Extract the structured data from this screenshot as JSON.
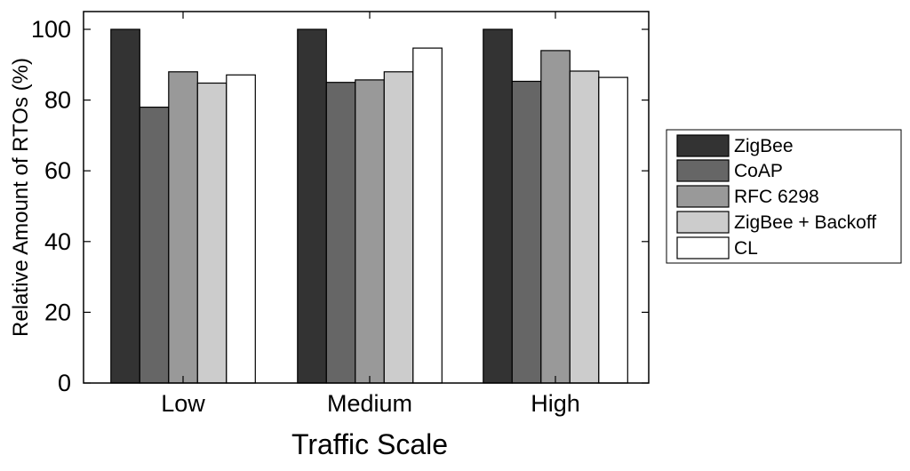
{
  "chart_data": {
    "type": "bar",
    "title": "",
    "xlabel": "Traffic Scale",
    "ylabel": "Relative Amount of RTOs (%)",
    "ylim": [
      0,
      100
    ],
    "yticks": [
      0,
      20,
      40,
      60,
      80,
      100
    ],
    "categories": [
      "Low",
      "Medium",
      "High"
    ],
    "legend_position": "right",
    "series": [
      {
        "name": "ZigBee",
        "color": "#333333",
        "values": [
          100,
          100,
          100
        ]
      },
      {
        "name": "CoAP",
        "color": "#666666",
        "values": [
          78,
          85,
          85.3
        ]
      },
      {
        "name": "RFC 6298",
        "color": "#999999",
        "values": [
          88,
          85.7,
          94
        ]
      },
      {
        "name": "ZigBee + Backoff",
        "color": "#cccccc",
        "values": [
          84.8,
          88,
          88.2
        ]
      },
      {
        "name": "CL",
        "color": "#ffffff",
        "values": [
          87.1,
          94.7,
          86.4
        ]
      }
    ]
  }
}
